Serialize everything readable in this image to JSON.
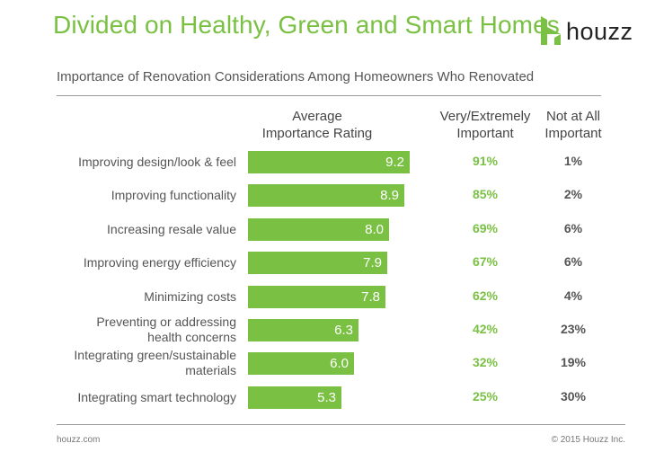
{
  "header": {
    "title": "Divided on Healthy, Green and Smart Homes",
    "brand": "houzz",
    "brand_color": "#7ac143"
  },
  "chart_data": {
    "type": "bar",
    "orientation": "horizontal",
    "title": "Importance of Renovation Considerations Among Homeowners Who Renovated",
    "categories": [
      "Improving design/look & feel",
      "Improving functionality",
      "Increasing resale value",
      "Improving energy efficiency",
      "Minimizing costs",
      "Preventing or addressing health concerns",
      "Integrating green/sustainable materials",
      "Integrating smart technology"
    ],
    "category_lines": [
      [
        "Improving design/look & feel"
      ],
      [
        "Improving functionality"
      ],
      [
        "Increasing resale value"
      ],
      [
        "Improving energy efficiency"
      ],
      [
        "Minimizing costs"
      ],
      [
        "Preventing or addressing",
        "health concerns"
      ],
      [
        "Integrating green/sustainable",
        "materials"
      ],
      [
        "Integrating smart technology"
      ]
    ],
    "columns": {
      "bar": [
        "Average",
        "Importance Rating"
      ],
      "very": [
        "Very/Extremely",
        "Important"
      ],
      "not": [
        "Not at All",
        "Important"
      ]
    },
    "series": [
      {
        "name": "Average Importance Rating",
        "values": [
          9.2,
          8.9,
          8.0,
          7.9,
          7.8,
          6.3,
          6.0,
          5.3
        ],
        "labels": [
          "9.2",
          "8.9",
          "8.0",
          "7.9",
          "7.8",
          "6.3",
          "6.0",
          "5.3"
        ]
      },
      {
        "name": "Very/Extremely Important",
        "values": [
          "91%",
          "85%",
          "69%",
          "67%",
          "62%",
          "42%",
          "32%",
          "25%"
        ]
      },
      {
        "name": "Not at All Important",
        "values": [
          "1%",
          "2%",
          "6%",
          "6%",
          "4%",
          "23%",
          "19%",
          "30%"
        ]
      }
    ],
    "xlim": [
      0,
      10
    ],
    "grid": false,
    "colors": {
      "bar": "#7ac143",
      "very": "#7ac143",
      "not": "#555555"
    }
  },
  "footer": {
    "left": "houzz.com",
    "right": "© 2015 Houzz Inc."
  }
}
